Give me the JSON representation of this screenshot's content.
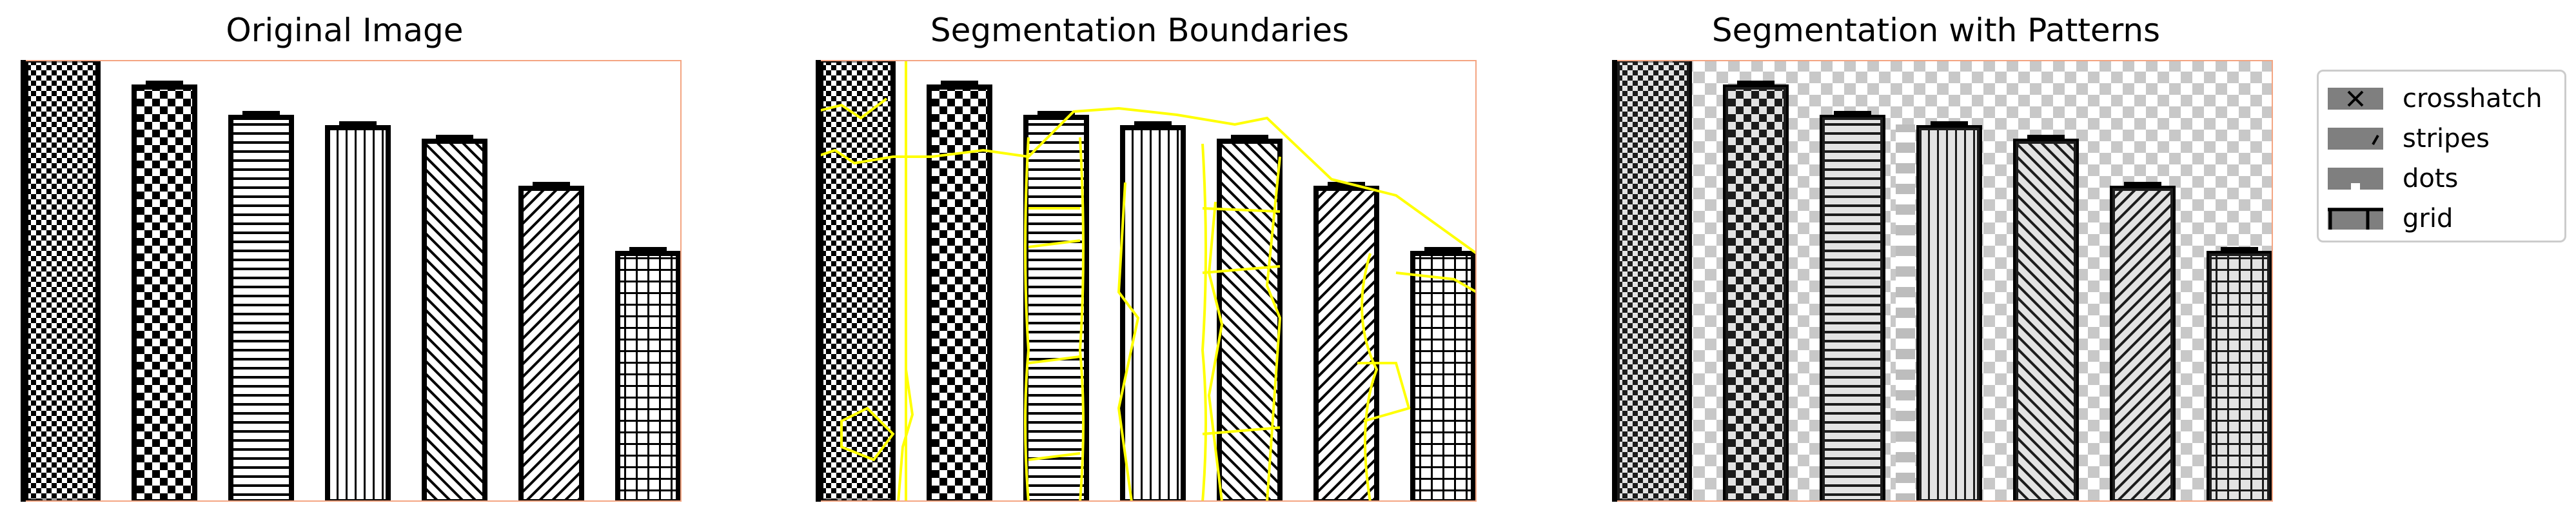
{
  "panels": [
    {
      "title": "Original Image"
    },
    {
      "title": "Segmentation Boundaries"
    },
    {
      "title": "Segmentation with Patterns"
    }
  ],
  "legend": {
    "items": [
      {
        "label": "crosshatch",
        "icon": "crosshatch-swatch"
      },
      {
        "label": "stripes",
        "icon": "stripes-swatch"
      },
      {
        "label": "dots",
        "icon": "dots-swatch"
      },
      {
        "label": "grid",
        "icon": "grid-swatch"
      }
    ]
  },
  "colors": {
    "frame": "#f4a582",
    "boundary": "#ffff00",
    "ink": "#000000",
    "overlay": "#7f7f7f"
  },
  "bars": [
    {
      "pattern": "checker-small",
      "relative_height": 1.0
    },
    {
      "pattern": "checker",
      "relative_height": 0.96
    },
    {
      "pattern": "horizontal",
      "relative_height": 0.89
    },
    {
      "pattern": "vertical",
      "relative_height": 0.865
    },
    {
      "pattern": "diagonal-right",
      "relative_height": 0.835
    },
    {
      "pattern": "diagonal-left",
      "relative_height": 0.725
    },
    {
      "pattern": "grid",
      "relative_height": 0.575
    }
  ]
}
